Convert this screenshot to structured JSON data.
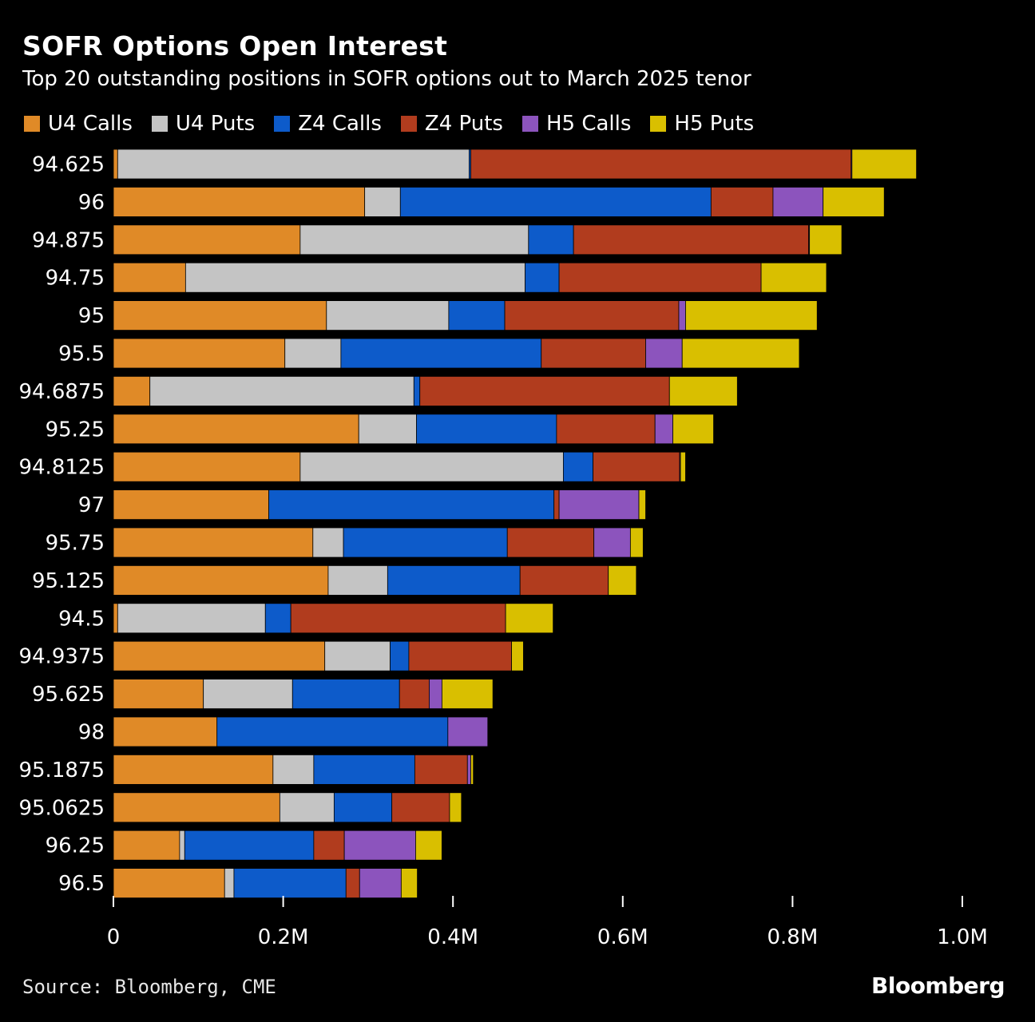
{
  "header": {
    "title": "SOFR Options Open Interest",
    "subtitle": "Top 20 outstanding positions in SOFR options out to March 2025 tenor"
  },
  "footer": {
    "source": "Source: Bloomberg, CME",
    "brand": "Bloomberg"
  },
  "chart_data": {
    "type": "bar",
    "orientation": "horizontal",
    "stacked": true,
    "title": "SOFR Options Open Interest",
    "subtitle": "Top 20 outstanding positions in SOFR options out to March 2025 tenor",
    "xlabel": "",
    "ylabel": "",
    "xlim": [
      0,
      1000000
    ],
    "xticks": [
      0,
      200000,
      400000,
      600000,
      800000,
      1000000
    ],
    "xtick_labels": [
      "0",
      "0.2M",
      "0.4M",
      "0.6M",
      "0.8M",
      "1.0M"
    ],
    "legend_position": "top-left",
    "categories": [
      "94.625",
      "96",
      "94.875",
      "94.75",
      "95",
      "95.5",
      "94.6875",
      "95.25",
      "94.8125",
      "97",
      "95.75",
      "95.125",
      "94.5",
      "94.9375",
      "95.625",
      "98",
      "95.1875",
      "95.0625",
      "96.25",
      "96.5"
    ],
    "series": [
      {
        "name": "U4 Calls",
        "color": "#e08a27",
        "values": [
          5000,
          296000,
          220000,
          85000,
          251000,
          202000,
          43000,
          289000,
          220000,
          183000,
          235000,
          253000,
          5000,
          249000,
          106000,
          122000,
          188000,
          196000,
          78000,
          131000
        ]
      },
      {
        "name": "U4 Puts",
        "color": "#c4c4c4",
        "values": [
          414000,
          42000,
          269000,
          400000,
          144000,
          66000,
          311000,
          68000,
          310000,
          0,
          36000,
          70000,
          174000,
          77000,
          105000,
          0,
          48000,
          64000,
          6000,
          11000
        ]
      },
      {
        "name": "Z4 Calls",
        "color": "#0d5bca",
        "values": [
          2000,
          366000,
          53000,
          40000,
          66000,
          236000,
          7000,
          165000,
          35000,
          336000,
          193000,
          156000,
          30000,
          22000,
          126000,
          272000,
          119000,
          68000,
          152000,
          132000
        ]
      },
      {
        "name": "Z4 Puts",
        "color": "#b13c1e",
        "values": [
          448000,
          73000,
          277000,
          238000,
          205000,
          123000,
          294000,
          116000,
          102000,
          6000,
          102000,
          104000,
          253000,
          121000,
          35000,
          0,
          62000,
          68000,
          36000,
          16000
        ]
      },
      {
        "name": "H5 Calls",
        "color": "#8c54bd",
        "values": [
          1000,
          59000,
          1000,
          0,
          8000,
          43000,
          0,
          21000,
          1000,
          94000,
          43000,
          0,
          0,
          0,
          15000,
          47000,
          4000,
          0,
          84000,
          49000
        ]
      },
      {
        "name": "H5 Puts",
        "color": "#d9bf00",
        "values": [
          76000,
          72000,
          38000,
          77000,
          155000,
          138000,
          80000,
          48000,
          6000,
          8000,
          15000,
          33000,
          56000,
          14000,
          60000,
          0,
          3000,
          14000,
          31000,
          19000
        ]
      }
    ]
  }
}
